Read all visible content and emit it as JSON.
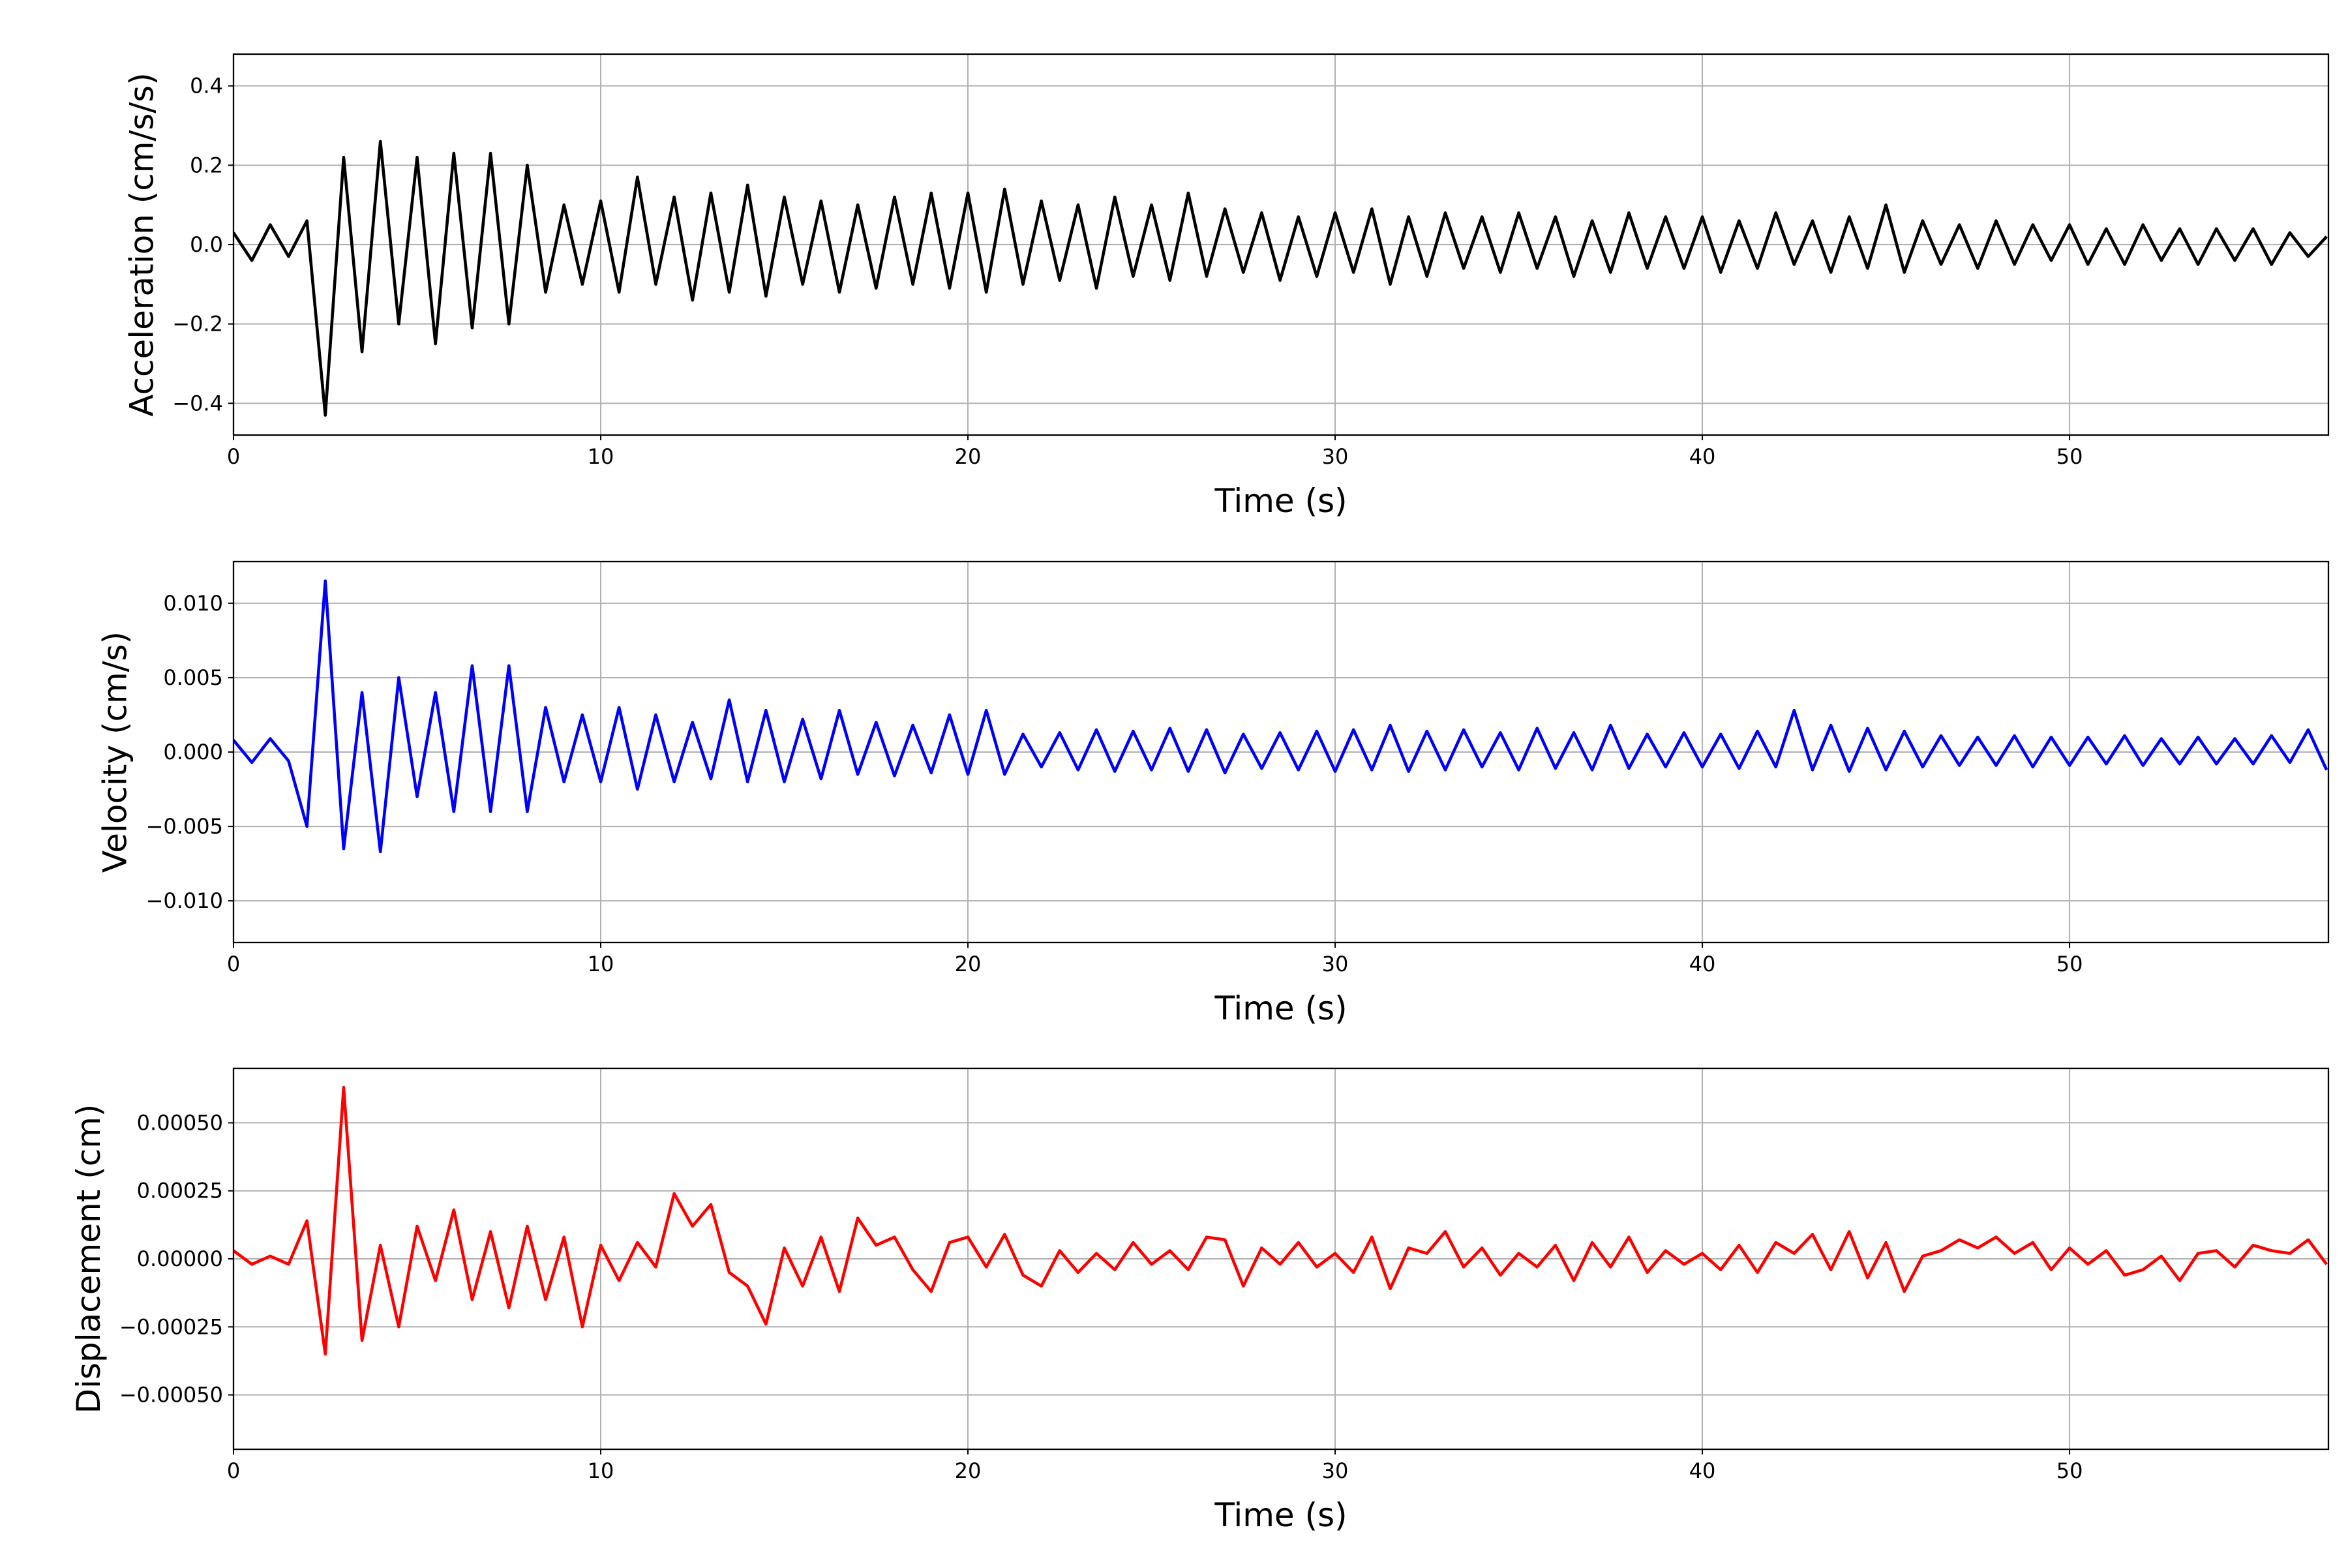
{
  "chart_data": [
    {
      "type": "line",
      "ylabel": "Acceleration (cm/s/s)",
      "xlabel": "Time (s)",
      "color": "#000000",
      "grid": true,
      "xlim": [
        0,
        57.05
      ],
      "ylim": [
        -0.48,
        0.48
      ],
      "xticks": [
        0,
        10,
        20,
        30,
        40,
        50
      ],
      "yticks": [
        {
          "value": -0.4,
          "label": "−0.4"
        },
        {
          "value": -0.2,
          "label": "−0.2"
        },
        {
          "value": 0,
          "label": "0.0"
        },
        0.2,
        0.4
      ],
      "x": [
        0,
        0.5,
        1,
        1.5,
        2,
        2.5,
        3,
        3.5,
        4,
        4.5,
        5,
        5.5,
        6,
        6.5,
        7,
        7.5,
        8,
        8.5,
        9,
        9.5,
        10,
        10.5,
        11,
        11.5,
        12,
        12.5,
        13,
        13.5,
        14,
        14.5,
        15,
        15.5,
        16,
        16.5,
        17,
        17.5,
        18,
        18.5,
        19,
        19.5,
        20,
        20.5,
        21,
        21.5,
        22,
        22.5,
        23,
        23.5,
        24,
        24.5,
        25,
        25.5,
        26,
        26.5,
        27,
        27.5,
        28,
        28.5,
        29,
        29.5,
        30,
        30.5,
        31,
        31.5,
        32,
        32.5,
        33,
        33.5,
        34,
        34.5,
        35,
        35.5,
        36,
        36.5,
        37,
        37.5,
        38,
        38.5,
        39,
        39.5,
        40,
        40.5,
        41,
        41.5,
        42,
        42.5,
        43,
        43.5,
        44,
        44.5,
        45,
        45.5,
        46,
        46.5,
        47,
        47.5,
        48,
        48.5,
        49,
        49.5,
        50,
        50.5,
        51,
        51.5,
        52,
        52.5,
        53,
        53.5,
        54,
        54.5,
        55,
        55.5,
        56,
        56.5,
        57
      ],
      "values": [
        0.03,
        -0.04,
        0.05,
        -0.03,
        0.06,
        -0.43,
        0.22,
        -0.27,
        0.26,
        -0.2,
        0.22,
        -0.25,
        0.23,
        -0.21,
        0.23,
        -0.2,
        0.2,
        -0.12,
        0.1,
        -0.1,
        0.11,
        -0.12,
        0.17,
        -0.1,
        0.12,
        -0.14,
        0.13,
        -0.12,
        0.15,
        -0.13,
        0.12,
        -0.1,
        0.11,
        -0.12,
        0.1,
        -0.11,
        0.12,
        -0.1,
        0.13,
        -0.11,
        0.13,
        -0.12,
        0.14,
        -0.1,
        0.11,
        -0.09,
        0.1,
        -0.11,
        0.12,
        -0.08,
        0.1,
        -0.09,
        0.13,
        -0.08,
        0.09,
        -0.07,
        0.08,
        -0.09,
        0.07,
        -0.08,
        0.08,
        -0.07,
        0.09,
        -0.1,
        0.07,
        -0.08,
        0.08,
        -0.06,
        0.07,
        -0.07,
        0.08,
        -0.06,
        0.07,
        -0.08,
        0.06,
        -0.07,
        0.08,
        -0.06,
        0.07,
        -0.06,
        0.07,
        -0.07,
        0.06,
        -0.06,
        0.08,
        -0.05,
        0.06,
        -0.07,
        0.07,
        -0.06,
        0.1,
        -0.07,
        0.06,
        -0.05,
        0.05,
        -0.06,
        0.06,
        -0.05,
        0.05,
        -0.04,
        0.05,
        -0.05,
        0.04,
        -0.05,
        0.05,
        -0.04,
        0.04,
        -0.05,
        0.04,
        -0.04,
        0.04,
        -0.05,
        0.03,
        -0.03,
        0.02
      ]
    },
    {
      "type": "line",
      "ylabel": "Velocity (cm/s)",
      "xlabel": "Time (s)",
      "color": "#0000ff",
      "grid": true,
      "xlim": [
        0,
        57.05
      ],
      "ylim": [
        -0.0128,
        0.0128
      ],
      "xticks": [
        0,
        10,
        20,
        30,
        40,
        50
      ],
      "yticks": [
        {
          "value": -0.01,
          "label": "−0.010"
        },
        {
          "value": -0.005,
          "label": "−0.005"
        },
        {
          "value": 0,
          "label": "0.000"
        },
        {
          "value": 0.005,
          "label": "0.005"
        },
        {
          "value": 0.01,
          "label": "0.010"
        }
      ],
      "x": [
        0,
        0.5,
        1,
        1.5,
        2,
        2.5,
        3,
        3.5,
        4,
        4.5,
        5,
        5.5,
        6,
        6.5,
        7,
        7.5,
        8,
        8.5,
        9,
        9.5,
        10,
        10.5,
        11,
        11.5,
        12,
        12.5,
        13,
        13.5,
        14,
        14.5,
        15,
        15.5,
        16,
        16.5,
        17,
        17.5,
        18,
        18.5,
        19,
        19.5,
        20,
        20.5,
        21,
        21.5,
        22,
        22.5,
        23,
        23.5,
        24,
        24.5,
        25,
        25.5,
        26,
        26.5,
        27,
        27.5,
        28,
        28.5,
        29,
        29.5,
        30,
        30.5,
        31,
        31.5,
        32,
        32.5,
        33,
        33.5,
        34,
        34.5,
        35,
        35.5,
        36,
        36.5,
        37,
        37.5,
        38,
        38.5,
        39,
        39.5,
        40,
        40.5,
        41,
        41.5,
        42,
        42.5,
        43,
        43.5,
        44,
        44.5,
        45,
        45.5,
        46,
        46.5,
        47,
        47.5,
        48,
        48.5,
        49,
        49.5,
        50,
        50.5,
        51,
        51.5,
        52,
        52.5,
        53,
        53.5,
        54,
        54.5,
        55,
        55.5,
        56,
        56.5,
        57
      ],
      "values": [
        0.0008,
        -0.0007,
        0.0009,
        -0.0006,
        -0.005,
        0.0115,
        -0.0065,
        0.004,
        -0.0067,
        0.005,
        -0.003,
        0.004,
        -0.004,
        0.0058,
        -0.004,
        0.0058,
        -0.004,
        0.003,
        -0.002,
        0.0025,
        -0.002,
        0.003,
        -0.0025,
        0.0025,
        -0.002,
        0.002,
        -0.0018,
        0.0035,
        -0.002,
        0.0028,
        -0.002,
        0.0022,
        -0.0018,
        0.0028,
        -0.0015,
        0.002,
        -0.0016,
        0.0018,
        -0.0014,
        0.0025,
        -0.0015,
        0.0028,
        -0.0015,
        0.0012,
        -0.001,
        0.0013,
        -0.0012,
        0.0015,
        -0.0013,
        0.0014,
        -0.0012,
        0.0016,
        -0.0013,
        0.0015,
        -0.0014,
        0.0012,
        -0.0011,
        0.0013,
        -0.0012,
        0.0014,
        -0.0013,
        0.0015,
        -0.0012,
        0.0018,
        -0.0013,
        0.0014,
        -0.0012,
        0.0015,
        -0.001,
        0.0013,
        -0.0012,
        0.0016,
        -0.0011,
        0.0013,
        -0.0012,
        0.0018,
        -0.0011,
        0.0012,
        -0.001,
        0.0013,
        -0.001,
        0.0012,
        -0.0011,
        0.0014,
        -0.001,
        0.0028,
        -0.0012,
        0.0018,
        -0.0013,
        0.0016,
        -0.0012,
        0.0014,
        -0.001,
        0.0011,
        -0.0009,
        0.001,
        -0.0009,
        0.0011,
        -0.001,
        0.001,
        -0.0009,
        0.001,
        -0.0008,
        0.0011,
        -0.0009,
        0.0009,
        -0.0008,
        0.001,
        -0.0008,
        0.0009,
        -0.0008,
        0.0011,
        -0.0007,
        0.0015,
        -0.0012
      ]
    },
    {
      "type": "line",
      "ylabel": "Displacement (cm)",
      "xlabel": "Time (s)",
      "color": "#ff0000",
      "grid": true,
      "xlim": [
        0,
        57.05
      ],
      "ylim": [
        -0.0007,
        0.0007
      ],
      "xticks": [
        0,
        10,
        20,
        30,
        40,
        50
      ],
      "yticks": [
        {
          "value": -0.0005,
          "label": "−0.00050"
        },
        {
          "value": -0.00025,
          "label": "−0.00025"
        },
        {
          "value": 0,
          "label": "0.00000"
        },
        {
          "value": 0.00025,
          "label": "0.00025"
        },
        {
          "value": 0.0005,
          "label": "0.00050"
        }
      ],
      "x": [
        0,
        0.5,
        1,
        1.5,
        2,
        2.5,
        3,
        3.5,
        4,
        4.5,
        5,
        5.5,
        6,
        6.5,
        7,
        7.5,
        8,
        8.5,
        9,
        9.5,
        10,
        10.5,
        11,
        11.5,
        12,
        12.5,
        13,
        13.5,
        14,
        14.5,
        15,
        15.5,
        16,
        16.5,
        17,
        17.5,
        18,
        18.5,
        19,
        19.5,
        20,
        20.5,
        21,
        21.5,
        22,
        22.5,
        23,
        23.5,
        24,
        24.5,
        25,
        25.5,
        26,
        26.5,
        27,
        27.5,
        28,
        28.5,
        29,
        29.5,
        30,
        30.5,
        31,
        31.5,
        32,
        32.5,
        33,
        33.5,
        34,
        34.5,
        35,
        35.5,
        36,
        36.5,
        37,
        37.5,
        38,
        38.5,
        39,
        39.5,
        40,
        40.5,
        41,
        41.5,
        42,
        42.5,
        43,
        43.5,
        44,
        44.5,
        45,
        45.5,
        46,
        46.5,
        47,
        47.5,
        48,
        48.5,
        49,
        49.5,
        50,
        50.5,
        51,
        51.5,
        52,
        52.5,
        53,
        53.5,
        54,
        54.5,
        55,
        55.5,
        56,
        56.5,
        57
      ],
      "values": [
        3e-05,
        -2e-05,
        1e-05,
        -2e-05,
        0.00014,
        -0.00035,
        0.00063,
        -0.0003,
        5e-05,
        -0.00025,
        0.00012,
        -8e-05,
        0.00018,
        -0.00015,
        0.0001,
        -0.00018,
        0.00012,
        -0.00015,
        8e-05,
        -0.00025,
        5e-05,
        -8e-05,
        6e-05,
        -3e-05,
        0.00024,
        0.00012,
        0.0002,
        -5e-05,
        -0.0001,
        -0.00024,
        4e-05,
        -0.0001,
        8e-05,
        -0.00012,
        0.00015,
        5e-05,
        8e-05,
        -4e-05,
        -0.00012,
        6e-05,
        8e-05,
        -3e-05,
        9e-05,
        -6e-05,
        -0.0001,
        3e-05,
        -5e-05,
        2e-05,
        -4e-05,
        6e-05,
        -2e-05,
        3e-05,
        -4e-05,
        8e-05,
        7e-05,
        -0.0001,
        4e-05,
        -2e-05,
        6e-05,
        -3e-05,
        2e-05,
        -5e-05,
        8e-05,
        -0.00011,
        4e-05,
        2e-05,
        0.0001,
        -3e-05,
        4e-05,
        -6e-05,
        2e-05,
        -3e-05,
        5e-05,
        -8e-05,
        6e-05,
        -3e-05,
        8e-05,
        -5e-05,
        3e-05,
        -2e-05,
        2e-05,
        -4e-05,
        5e-05,
        -5e-05,
        6e-05,
        2e-05,
        9e-05,
        -4e-05,
        0.0001,
        -7e-05,
        6e-05,
        -0.00012,
        1e-05,
        3e-05,
        7e-05,
        4e-05,
        8e-05,
        2e-05,
        6e-05,
        -4e-05,
        4e-05,
        -2e-05,
        3e-05,
        -6e-05,
        -4e-05,
        1e-05,
        -8e-05,
        2e-05,
        3e-05,
        -3e-05,
        5e-05,
        3e-05,
        2e-05,
        7e-05,
        -2e-05
      ]
    }
  ]
}
